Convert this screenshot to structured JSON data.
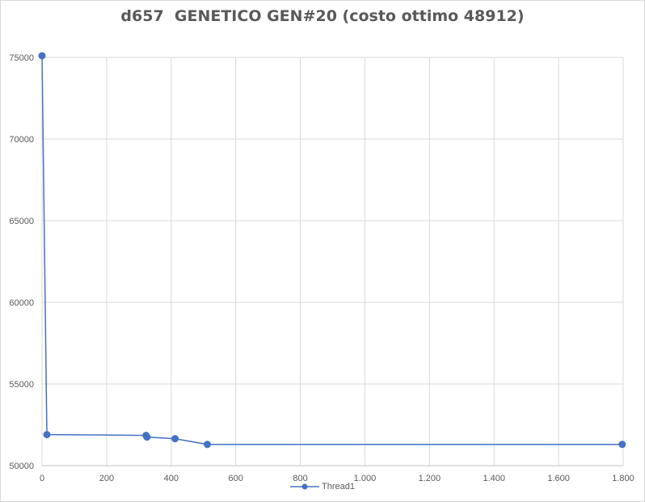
{
  "chart_data": {
    "type": "line",
    "title": "d657  GENETICO GEN#20 (costo ottimo 48912)",
    "xlabel": "",
    "ylabel": "",
    "xlim": [
      0,
      1800
    ],
    "ylim": [
      50000,
      75000
    ],
    "x_ticks": [
      0,
      200,
      400,
      600,
      800,
      1000,
      1200,
      1400,
      1600,
      1800
    ],
    "x_tick_labels": [
      "0",
      "200",
      "400",
      "600",
      "800",
      "1.000",
      "1.200",
      "1.400",
      "1.600",
      "1.800"
    ],
    "y_ticks": [
      50000,
      55000,
      60000,
      65000,
      70000,
      75000
    ],
    "y_tick_labels": [
      "50000",
      "55000",
      "60000",
      "65000",
      "70000",
      "75000"
    ],
    "grid": true,
    "legend_position": "bottom",
    "series": [
      {
        "name": "Thread1",
        "color": "#4472c4",
        "points": [
          {
            "x": 0,
            "y": 75100
          },
          {
            "x": 15,
            "y": 51900
          },
          {
            "x": 322,
            "y": 51850
          },
          {
            "x": 325,
            "y": 51750
          },
          {
            "x": 412,
            "y": 51650
          },
          {
            "x": 512,
            "y": 51300
          },
          {
            "x": 1797,
            "y": 51300
          }
        ]
      }
    ]
  }
}
